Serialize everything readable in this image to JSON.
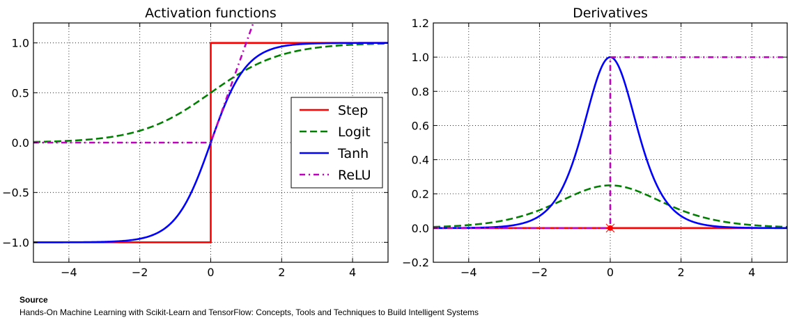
{
  "chart_data": [
    {
      "type": "line",
      "title": "Activation functions",
      "xlim": [
        -5,
        5
      ],
      "ylim": [
        -1.2,
        1.2
      ],
      "xticks": [
        -4,
        -2,
        0,
        2,
        4
      ],
      "xtick_labels": [
        "−4",
        "−2",
        "0",
        "2",
        "4"
      ],
      "yticks": [
        -1.0,
        -0.5,
        0.0,
        0.5,
        1.0
      ],
      "ytick_labels": [
        "−1.0",
        "−0.5",
        "0.0",
        "0.5",
        "1.0"
      ],
      "grid": true,
      "legend": "center-right",
      "series": [
        {
          "name": "Step",
          "function": "step",
          "color": "#ff0000",
          "style": "solid"
        },
        {
          "name": "Logit",
          "function": "sigmoid",
          "color": "#008000",
          "style": "dashed"
        },
        {
          "name": "Tanh",
          "function": "tanh",
          "color": "#0000ff",
          "style": "solid"
        },
        {
          "name": "ReLU",
          "function": "relu",
          "color": "#bf00bf",
          "style": "dashdot"
        }
      ]
    },
    {
      "type": "line",
      "title": "Derivatives",
      "xlim": [
        -5,
        5
      ],
      "ylim": [
        -0.2,
        1.2
      ],
      "xticks": [
        -4,
        -2,
        0,
        2,
        4
      ],
      "xtick_labels": [
        "−4",
        "−2",
        "0",
        "2",
        "4"
      ],
      "yticks": [
        -0.2,
        0.0,
        0.2,
        0.4,
        0.6,
        0.8,
        1.0,
        1.2
      ],
      "ytick_labels": [
        "−0.2",
        "0.0",
        "0.2",
        "0.4",
        "0.6",
        "0.8",
        "1.0",
        "1.2"
      ],
      "grid": true,
      "series": [
        {
          "name": "Step",
          "function": "step_derivative",
          "color": "#ff0000",
          "style": "solid"
        },
        {
          "name": "Logit",
          "function": "sigmoid_derivative",
          "color": "#008000",
          "style": "dashed"
        },
        {
          "name": "Tanh",
          "function": "tanh_derivative",
          "color": "#0000ff",
          "style": "solid"
        },
        {
          "name": "ReLU",
          "function": "relu_derivative",
          "color": "#bf00bf",
          "style": "dashdot"
        }
      ],
      "marker": {
        "x": 0,
        "y": 0,
        "color": "#ff0000"
      }
    }
  ],
  "source": {
    "title": "Source",
    "text": "Hands-On Machine Learning with Scikit-Learn and TensorFlow: Concepts, Tools and Techniques to Build Intelligent Systems"
  }
}
